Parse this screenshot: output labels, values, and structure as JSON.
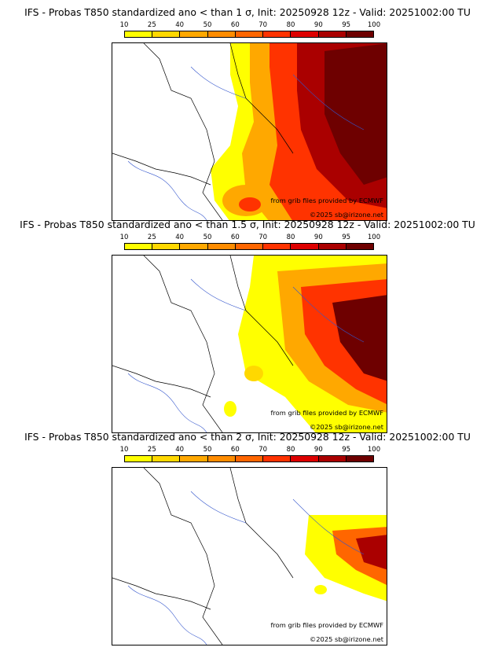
{
  "colorbar": {
    "ticks": [
      "10",
      "25",
      "40",
      "50",
      "60",
      "70",
      "80",
      "90",
      "95",
      "100"
    ],
    "colors": [
      "#ffff00",
      "#ffd800",
      "#ffa800",
      "#ff8c00",
      "#ff6600",
      "#ff3300",
      "#dd0000",
      "#aa0000",
      "#6e0000"
    ]
  },
  "panels": [
    {
      "title": "IFS - Probas T850  standardized ano < than 1 σ, Init: 20250928 12z - Valid: 20251002:00 TU",
      "source_credit": "from grib files provided by ECMWF",
      "copyright": "©2025 sb@irizone.net"
    },
    {
      "title": "IFS - Probas T850  standardized ano < than 1.5 σ, Init: 20250928 12z - Valid: 20251002:00 TU",
      "source_credit": "from grib files provided by ECMWF",
      "copyright": "©2025 sb@irizone.net"
    },
    {
      "title": "IFS - Probas T850  standardized ano < than 2 σ, Init: 20250928 12z - Valid: 20251002:00 TU",
      "source_credit": "from grib files provided by ECMWF",
      "copyright": "©2025 sb@irizone.net"
    }
  ]
}
